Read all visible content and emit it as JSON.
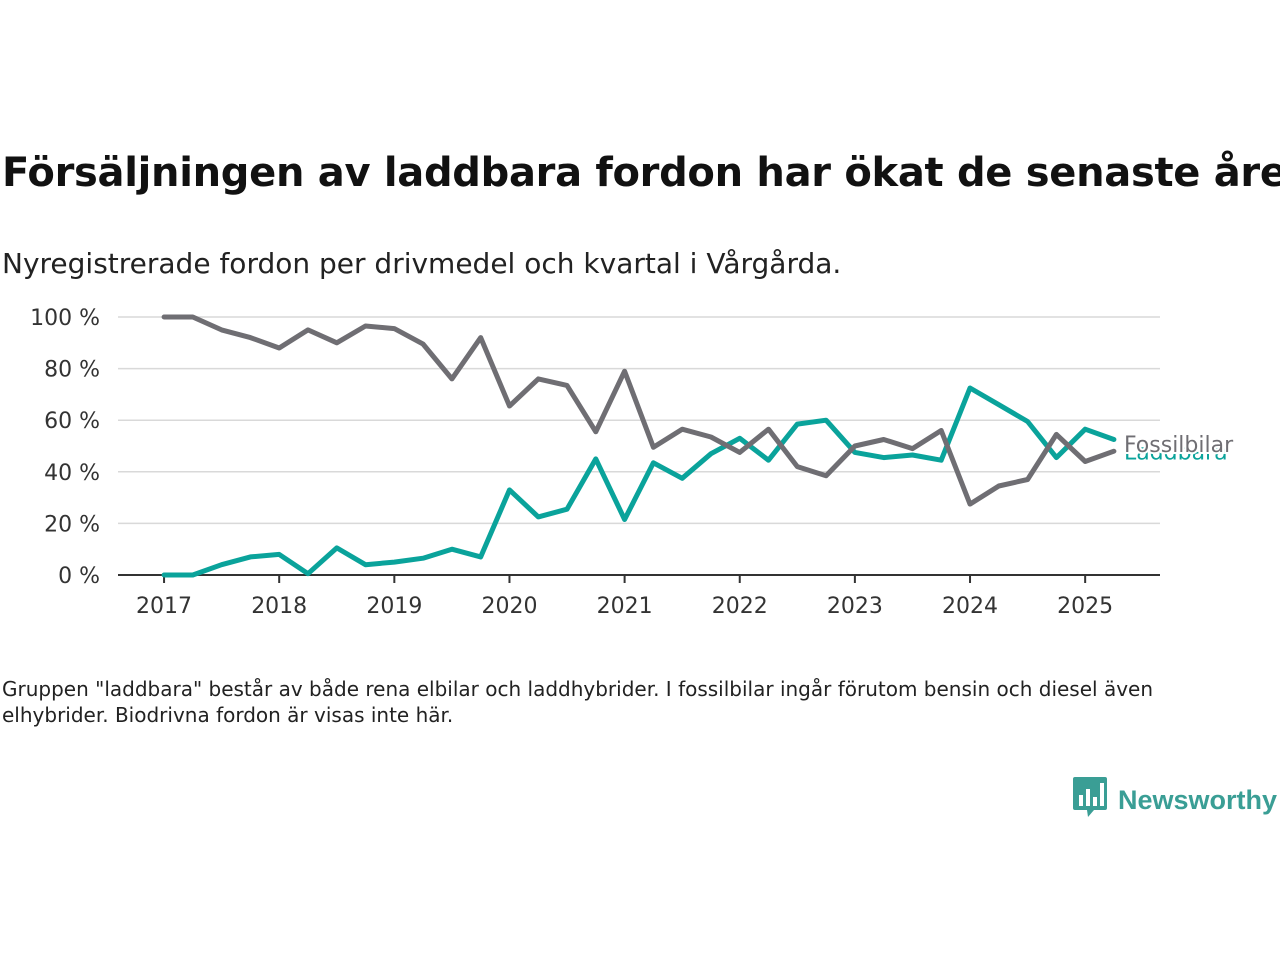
{
  "title": "Försäljningen av laddbara fordon har ökat de senaste åren",
  "subtitle": "Nyregistrerade fordon per drivmedel och kvartal i Vårgårda.",
  "note": "Gruppen \"laddbara\" består av både rena elbilar och laddhybrider. I fossilbilar ingår förutom bensin och diesel även elhybrider. Biodrivna fordon är visas inte här.",
  "brand": {
    "name": "Newsworthy",
    "icon": "bar-chart-speech-bubble-icon",
    "color": "#3a9e95"
  },
  "chart_data": {
    "type": "line",
    "ylim": [
      0,
      100
    ],
    "yticks": [
      "0 %",
      "20 %",
      "40 %",
      "60 %",
      "80 %",
      "100 %"
    ],
    "ytick_values": [
      0,
      20,
      40,
      60,
      80,
      100
    ],
    "xticks": [
      "2017",
      "2018",
      "2019",
      "2020",
      "2021",
      "2022",
      "2023",
      "2024",
      "2025"
    ],
    "xtick_values": [
      2017,
      2018,
      2019,
      2020,
      2021,
      2022,
      2023,
      2024,
      2025
    ],
    "xlim": [
      2016.6,
      2025.65
    ],
    "grid": true,
    "x": [
      2017.0,
      2017.25,
      2017.5,
      2017.75,
      2018.0,
      2018.25,
      2018.5,
      2018.75,
      2019.0,
      2019.25,
      2019.5,
      2019.75,
      2020.0,
      2020.25,
      2020.5,
      2020.75,
      2021.0,
      2021.25,
      2021.5,
      2021.75,
      2022.0,
      2022.25,
      2022.5,
      2022.75,
      2023.0,
      2023.25,
      2023.5,
      2023.75,
      2024.0,
      2024.25,
      2024.5,
      2024.75,
      2025.0,
      2025.25
    ],
    "series": [
      {
        "name": "Fossilbilar",
        "color": "#6f6e73",
        "values": [
          100,
          100,
          95,
          92,
          88,
          95,
          90,
          96.5,
          95.5,
          89.5,
          76,
          92,
          65.5,
          76,
          73.5,
          55.5,
          79,
          49.5,
          56.5,
          53.5,
          47.5,
          56.5,
          42,
          38.5,
          50,
          52.5,
          49,
          56,
          27.5,
          34.5,
          37,
          54.5,
          44,
          48
        ]
      },
      {
        "name": "Laddbara",
        "color": "#0aa39b",
        "values": [
          0,
          0,
          4,
          7,
          8,
          0.5,
          10.5,
          4,
          5,
          6.5,
          10,
          7,
          33,
          22.5,
          25.5,
          45,
          21.5,
          43.5,
          37.5,
          47,
          53,
          44.5,
          58.5,
          60,
          47.5,
          45.5,
          46.5,
          44.5,
          72.5,
          66,
          59.5,
          45.5,
          56.5,
          52.5
        ]
      }
    ]
  }
}
